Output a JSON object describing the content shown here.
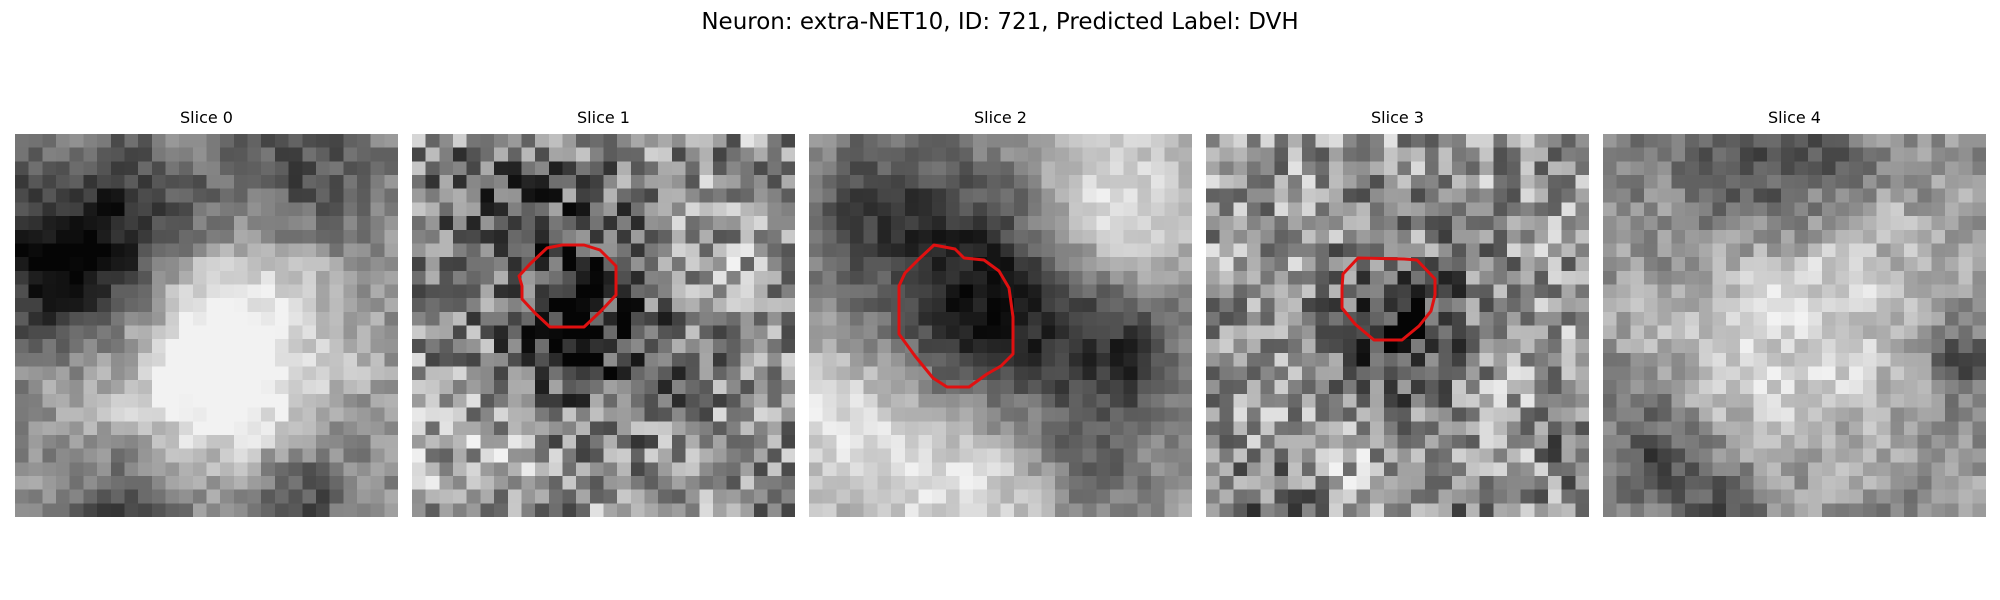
{
  "figure": {
    "title": "Neuron: extra-NET10, ID: 721, Predicted Label: DVH",
    "roi_color": "#e01010"
  },
  "slices": [
    {
      "label": "Slice 0",
      "has_roi": false
    },
    {
      "label": "Slice 1",
      "has_roi": true
    },
    {
      "label": "Slice 2",
      "has_roi": true
    },
    {
      "label": "Slice 3",
      "has_roi": true
    },
    {
      "label": "Slice 4",
      "has_roi": false
    }
  ]
}
